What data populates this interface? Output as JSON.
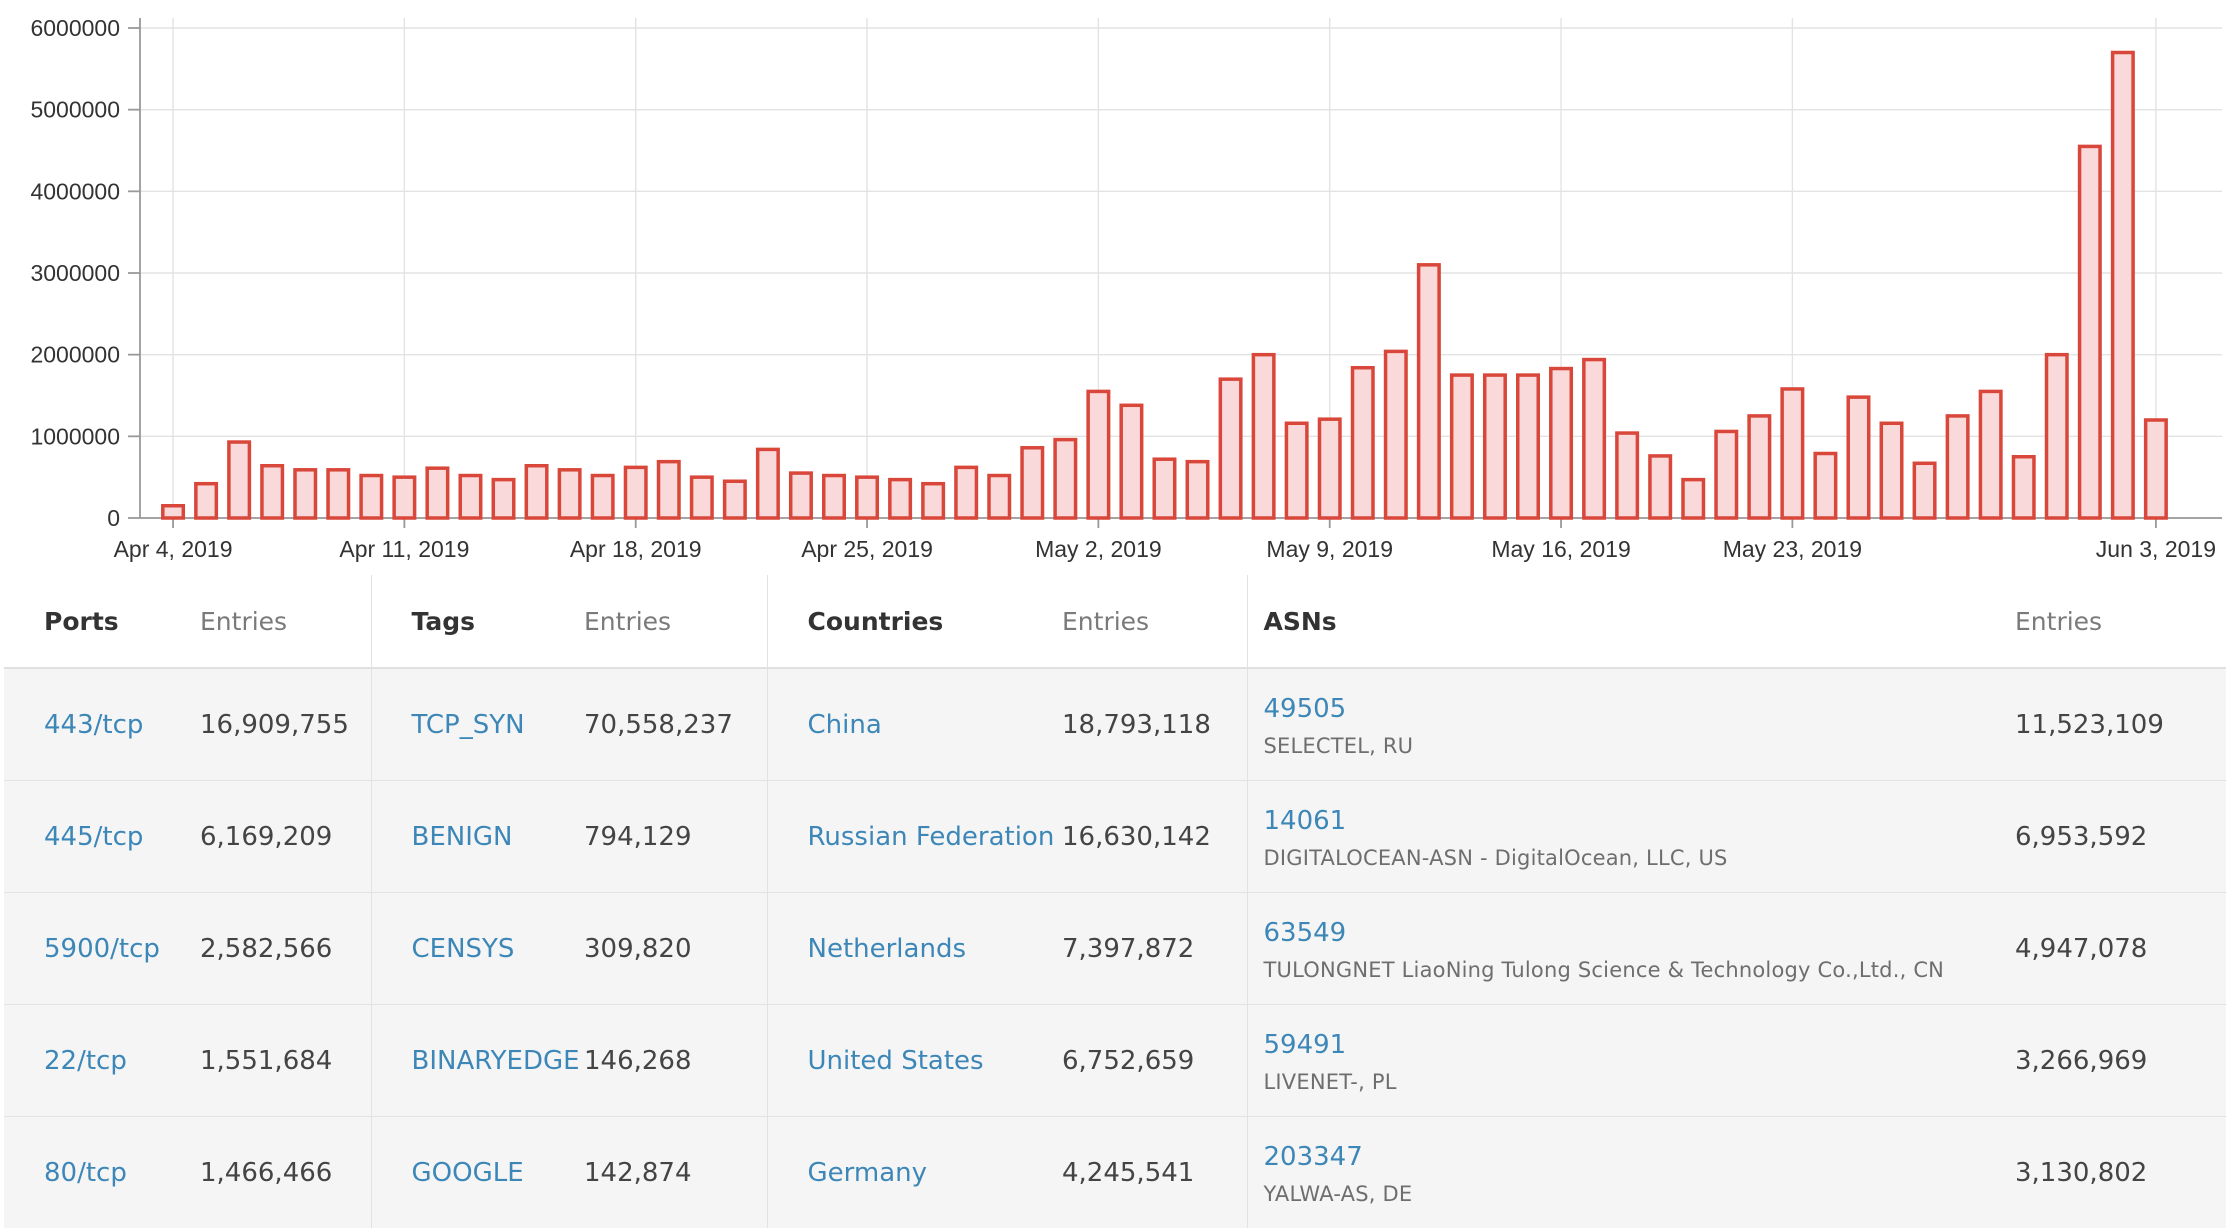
{
  "chart_data": {
    "type": "bar",
    "x": [
      "Apr 4",
      "Apr 5",
      "Apr 6",
      "Apr 7",
      "Apr 8",
      "Apr 9",
      "Apr 10",
      "Apr 11",
      "Apr 12",
      "Apr 13",
      "Apr 14",
      "Apr 15",
      "Apr 16",
      "Apr 17",
      "Apr 18",
      "Apr 19",
      "Apr 20",
      "Apr 21",
      "Apr 22",
      "Apr 23",
      "Apr 24",
      "Apr 25",
      "Apr 26",
      "Apr 27",
      "Apr 28",
      "Apr 29",
      "Apr 30",
      "May 1",
      "May 2",
      "May 3",
      "May 4",
      "May 5",
      "May 6",
      "May 7",
      "May 8",
      "May 9",
      "May 10",
      "May 11",
      "May 12",
      "May 13",
      "May 14",
      "May 15",
      "May 16",
      "May 17",
      "May 18",
      "May 19",
      "May 20",
      "May 21",
      "May 22",
      "May 23",
      "May 24",
      "May 25",
      "May 26",
      "May 27",
      "May 28",
      "May 29",
      "May 30",
      "May 31",
      "Jun 1",
      "Jun 2",
      "Jun 3"
    ],
    "values": [
      150000,
      420000,
      930000,
      640000,
      590000,
      590000,
      520000,
      500000,
      610000,
      520000,
      470000,
      640000,
      590000,
      520000,
      620000,
      690000,
      500000,
      450000,
      840000,
      550000,
      520000,
      500000,
      470000,
      420000,
      620000,
      520000,
      860000,
      960000,
      1550000,
      1380000,
      720000,
      690000,
      1700000,
      2000000,
      1160000,
      1210000,
      1840000,
      2040000,
      3100000,
      1750000,
      1750000,
      1750000,
      1830000,
      1940000,
      1040000,
      760000,
      470000,
      1060000,
      1250000,
      1580000,
      790000,
      1480000,
      1160000,
      670000,
      1250000,
      1550000,
      750000,
      2000000,
      4550000,
      5700000,
      1200000
    ],
    "xlim": [
      "Apr 3, 2019",
      "Jun 5, 2019"
    ],
    "ylim": [
      0,
      6000000
    ],
    "yticks": [
      "0",
      "1000000",
      "2000000",
      "3000000",
      "4000000",
      "5000000",
      "6000000"
    ],
    "xticks": [
      "Apr 4, 2019",
      "Apr 11, 2019",
      "Apr 18, 2019",
      "Apr 25, 2019",
      "May 2, 2019",
      "May 9, 2019",
      "May 16, 2019",
      "May 23, 2019",
      "Jun 3, 2019"
    ],
    "title": "",
    "xlabel": "",
    "ylabel": "",
    "bar_fill": "#f9d9d9",
    "bar_stroke": "#d9473b",
    "grid": true
  },
  "tables": {
    "ports": {
      "header": "Ports",
      "entries_header": "Entries",
      "rows": [
        {
          "name": "443/tcp",
          "entries": "16,909,755"
        },
        {
          "name": "445/tcp",
          "entries": "6,169,209"
        },
        {
          "name": "5900/tcp",
          "entries": "2,582,566"
        },
        {
          "name": "22/tcp",
          "entries": "1,551,684"
        },
        {
          "name": "80/tcp",
          "entries": "1,466,466"
        }
      ]
    },
    "tags": {
      "header": "Tags",
      "entries_header": "Entries",
      "rows": [
        {
          "name": "TCP_SYN",
          "entries": "70,558,237"
        },
        {
          "name": "BENIGN",
          "entries": "794,129"
        },
        {
          "name": "CENSYS",
          "entries": "309,820"
        },
        {
          "name": "BINARYEDGE",
          "entries": "146,268"
        },
        {
          "name": "GOOGLE",
          "entries": "142,874"
        }
      ]
    },
    "countries": {
      "header": "Countries",
      "entries_header": "Entries",
      "rows": [
        {
          "name": "China",
          "entries": "18,793,118"
        },
        {
          "name": "Russian Federation",
          "entries": "16,630,142"
        },
        {
          "name": "Netherlands",
          "entries": "7,397,872"
        },
        {
          "name": "United States",
          "entries": "6,752,659"
        },
        {
          "name": "Germany",
          "entries": "4,245,541"
        }
      ]
    },
    "asns": {
      "header": "ASNs",
      "entries_header": "Entries",
      "rows": [
        {
          "number": "49505",
          "name": "SELECTEL, RU",
          "entries": "11,523,109"
        },
        {
          "number": "14061",
          "name": "DIGITALOCEAN-ASN - DigitalOcean, LLC, US",
          "entries": "6,953,592"
        },
        {
          "number": "63549",
          "name": "TULONGNET LiaoNing Tulong Science & Technology Co.,Ltd., CN",
          "entries": "4,947,078"
        },
        {
          "number": "59491",
          "name": "LIVENET-, PL",
          "entries": "3,266,969"
        },
        {
          "number": "203347",
          "name": "YALWA-AS, DE",
          "entries": "3,130,802"
        }
      ]
    }
  },
  "colors": {
    "link": "#3d87b8",
    "row_background": "#f5f5f5"
  }
}
